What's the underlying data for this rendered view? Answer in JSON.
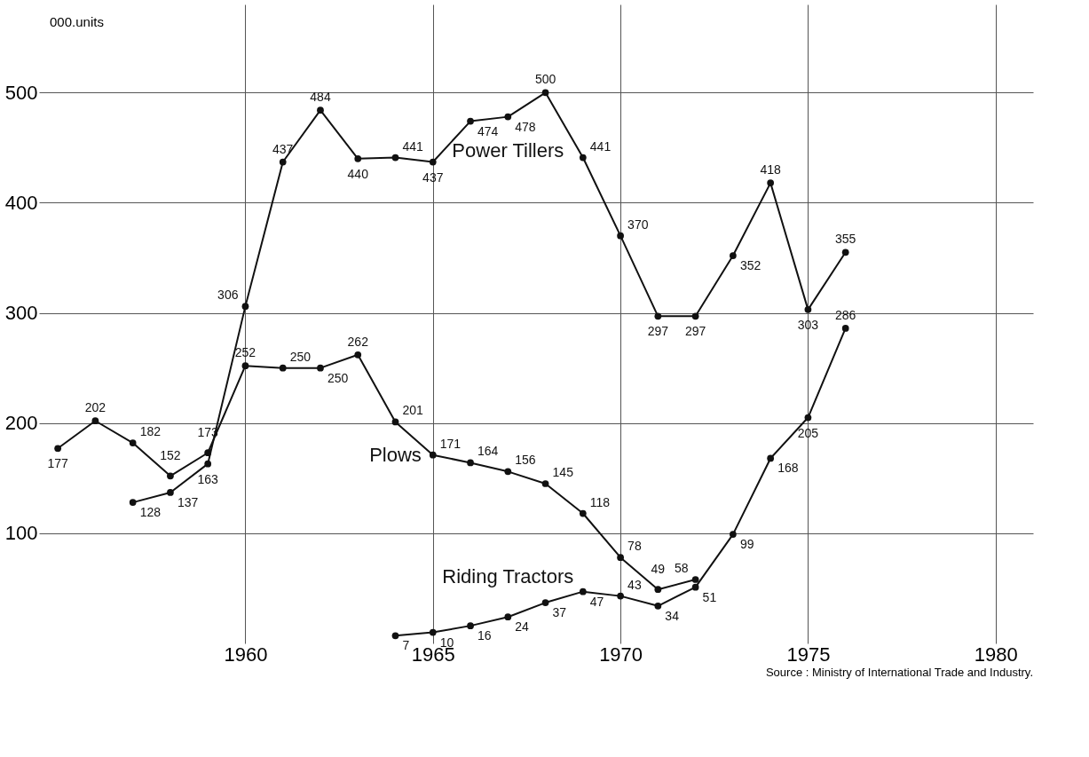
{
  "chart_data": {
    "type": "line",
    "ylabel": "000.units",
    "annotations": [
      "Source : Ministry of International Trade  and Industry."
    ],
    "xlim": [
      1954.5,
      1981
    ],
    "xticks": [
      1960,
      1965,
      1970,
      1975,
      1980
    ],
    "ylim": [
      0,
      580
    ],
    "yticks": [
      100,
      200,
      300,
      400,
      500
    ],
    "grid": true,
    "marker": "circle",
    "data_labels": true,
    "legend": false,
    "series": [
      {
        "name": "Power Tillers",
        "color": "#111111",
        "x": [
          1957,
          1958,
          1959,
          1960,
          1961,
          1962,
          1963,
          1964,
          1965,
          1966,
          1967,
          1968,
          1969,
          1970,
          1971,
          1972,
          1973,
          1974,
          1975,
          1976
        ],
        "values": [
          128,
          137,
          163,
          306,
          437,
          484,
          440,
          441,
          437,
          474,
          478,
          500,
          441,
          370,
          297,
          297,
          352,
          418,
          303,
          355
        ]
      },
      {
        "name": "Plows",
        "color": "#111111",
        "x": [
          1955,
          1956,
          1957,
          1958,
          1959,
          1960,
          1961,
          1962,
          1963,
          1964,
          1965,
          1966,
          1967,
          1968,
          1969,
          1970,
          1971,
          1972
        ],
        "values": [
          177,
          202,
          182,
          152,
          173,
          252,
          250,
          250,
          262,
          201,
          171,
          164,
          156,
          145,
          118,
          78,
          49,
          58
        ]
      },
      {
        "name": "Riding Tractors",
        "color": "#111111",
        "x": [
          1964,
          1965,
          1966,
          1967,
          1968,
          1969,
          1970,
          1971,
          1972,
          1973,
          1974,
          1975,
          1976
        ],
        "values": [
          7,
          10,
          16,
          24,
          37,
          47,
          43,
          34,
          51,
          99,
          168,
          205,
          286
        ]
      }
    ]
  }
}
